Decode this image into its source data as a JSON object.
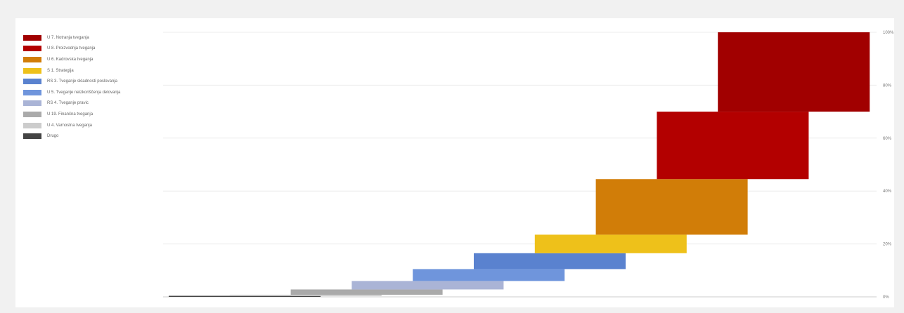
{
  "chart_data": {
    "type": "bar",
    "title": "",
    "xlabel": "",
    "ylabel": "",
    "ylim": [
      0,
      100
    ],
    "y_ticks": [
      "0%",
      "20%",
      "40%",
      "60%",
      "80%",
      "100%"
    ],
    "grid": true,
    "legend_position": "top-left",
    "series": [
      {
        "name": "Drugo",
        "color": "#444444",
        "start": 0.0,
        "end": 0.3
      },
      {
        "name": "U 4. Varnostna tveganja",
        "color": "#cccccc",
        "start": 0.3,
        "end": 0.8
      },
      {
        "name": "U 19. Finančna tveganja",
        "color": "#aaaaaa",
        "start": 0.8,
        "end": 2.8
      },
      {
        "name": "RS 4. Tveganje pravic",
        "color": "#aab4d6",
        "start": 2.8,
        "end": 6.0
      },
      {
        "name": "U 5. Tveganje neizkoriščenja delovanja",
        "color": "#6f95dc",
        "start": 6.0,
        "end": 10.5
      },
      {
        "name": "RS 3. Tveganje skladnosti poslovanja",
        "color": "#5a82cf",
        "start": 10.5,
        "end": 16.5
      },
      {
        "name": "S 1. Strategija",
        "color": "#eec11a",
        "start": 16.5,
        "end": 23.5
      },
      {
        "name": "U 6. Kadrovska tveganja",
        "color": "#d17d08",
        "start": 23.5,
        "end": 44.5
      },
      {
        "name": "U 8. Proizvodnja tveganja",
        "color": "#b30000",
        "start": 44.5,
        "end": 70.0
      },
      {
        "name": "U 7. Notranja tveganja",
        "color": "#a10000",
        "start": 70.0,
        "end": 100.0
      }
    ]
  }
}
